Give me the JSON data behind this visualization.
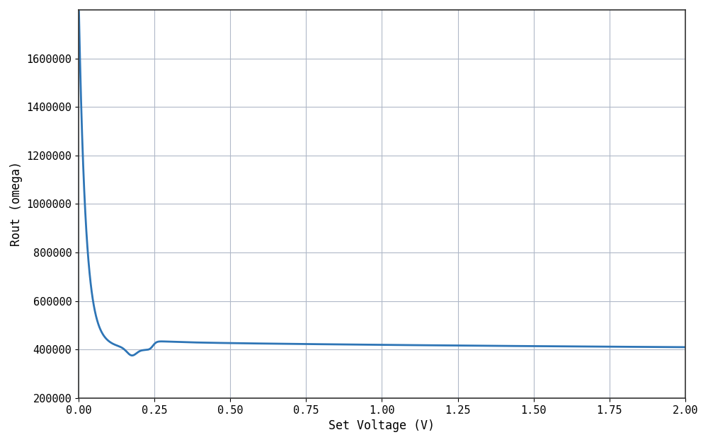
{
  "xlabel": "Set Voltage (V)",
  "ylabel": "Rout (omega)",
  "line_color": "#2e75b6",
  "line_width": 2.0,
  "background_color": "#ffffff",
  "grid_color": "#b0b8c8",
  "xlim": [
    0.0,
    2.0
  ],
  "ylim": [
    200000,
    1800000
  ],
  "xticks": [
    0.0,
    0.25,
    0.5,
    0.75,
    1.0,
    1.25,
    1.5,
    1.75,
    2.0
  ],
  "yticks": [
    200000,
    400000,
    600000,
    800000,
    1000000,
    1200000,
    1400000,
    1600000
  ]
}
